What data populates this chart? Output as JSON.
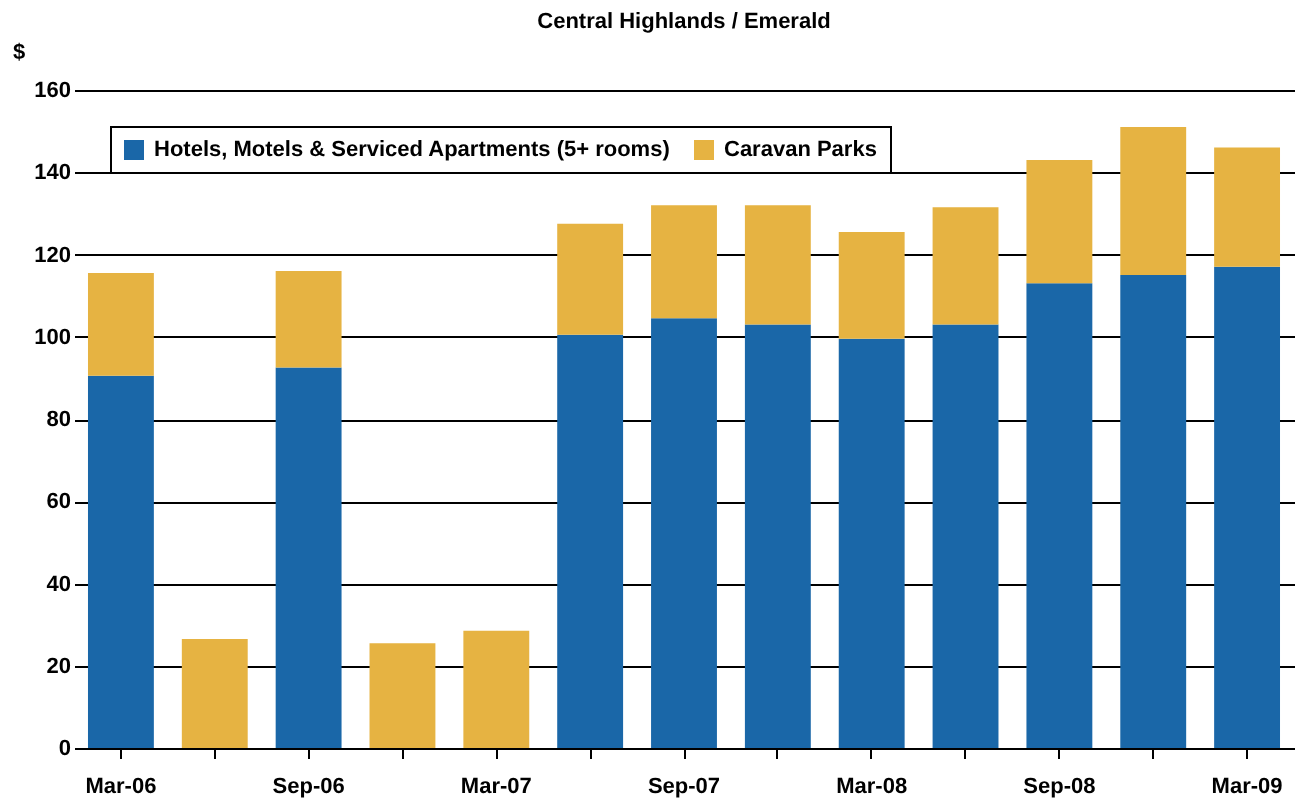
{
  "chart_data": {
    "type": "bar",
    "title": "Central Highlands / Emerald",
    "ylabel": "$",
    "stacked": true,
    "categories": [
      "Mar-06",
      null,
      "Sep-06",
      null,
      "Mar-07",
      null,
      "Sep-07",
      null,
      "Mar-08",
      null,
      "Sep-08",
      null,
      "Mar-09"
    ],
    "series": [
      {
        "name": "Hotels, Motels & Serviced Apartments (5+ rooms)",
        "color": "#1a67a8",
        "values": [
          90.5,
          null,
          92.5,
          null,
          null,
          100.5,
          104.5,
          103,
          99.5,
          103,
          113,
          115,
          117
        ]
      },
      {
        "name": "Caravan Parks",
        "color": "#e6b342",
        "values": [
          25,
          26.5,
          23.5,
          25.5,
          28.5,
          27,
          27.5,
          29,
          26,
          28.5,
          30,
          36,
          29
        ]
      }
    ],
    "ylim": [
      0,
      160
    ],
    "yticks": [
      0,
      20,
      40,
      60,
      80,
      100,
      120,
      140,
      160
    ],
    "grid": "y",
    "legend": "top left"
  }
}
